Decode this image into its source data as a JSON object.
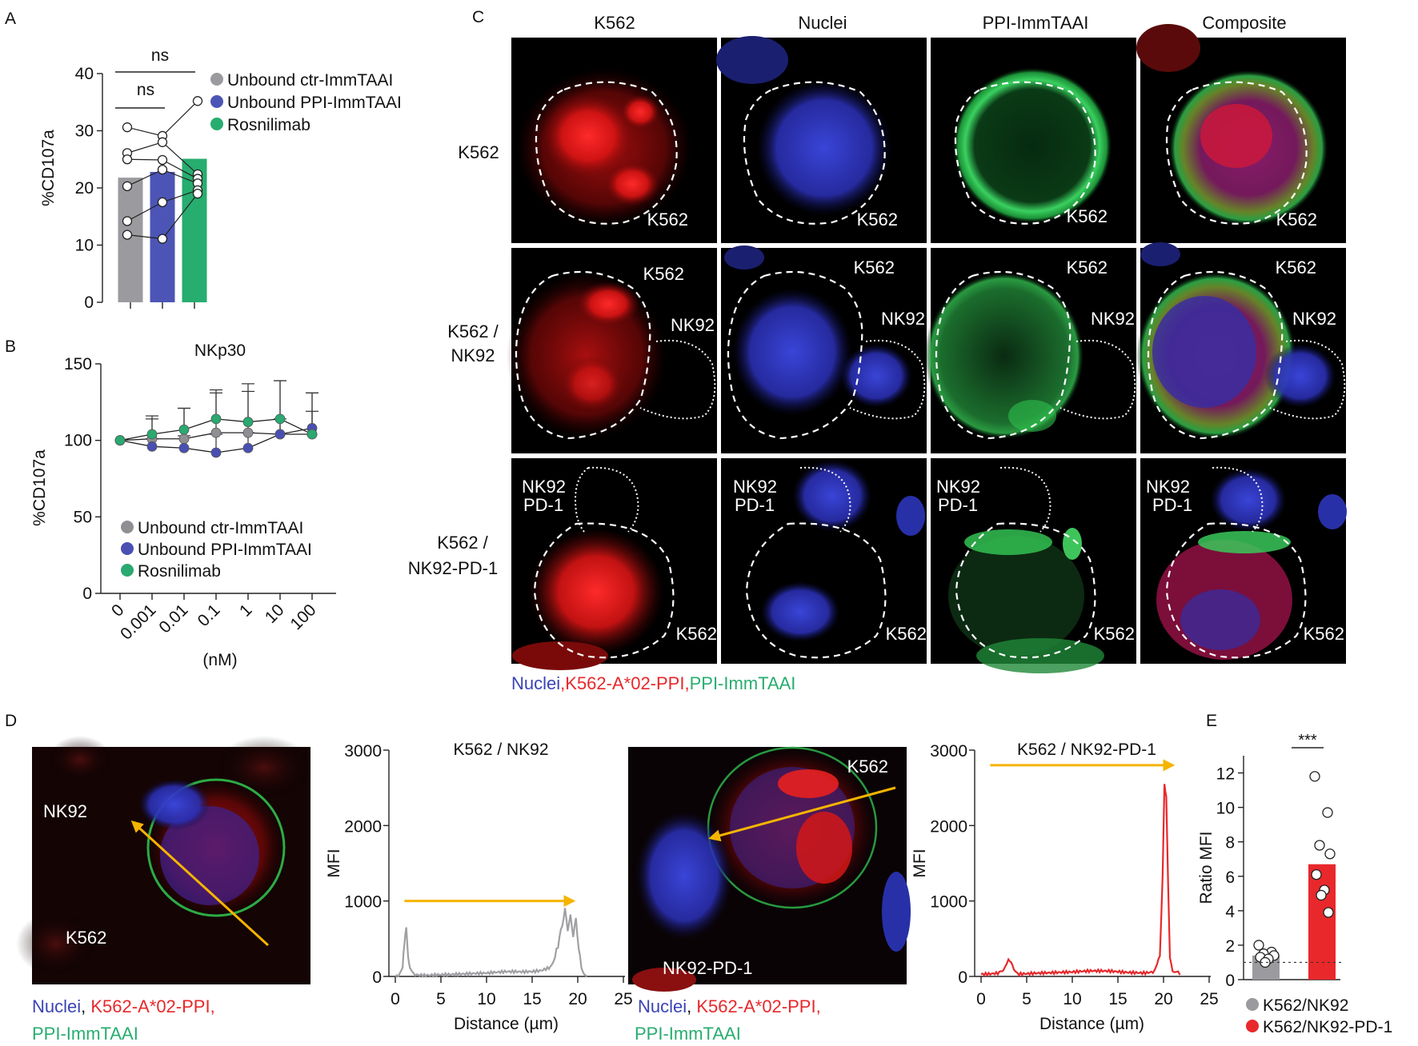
{
  "panels": {
    "A": {
      "letter": "A",
      "ylabel": "%CD107a",
      "ns1": "ns",
      "ns2": "ns",
      "yticks": [
        "0",
        "10",
        "20",
        "30",
        "40"
      ],
      "legend": [
        {
          "label": "Unbound ctr-ImmTAAI",
          "color": "#9b9b9f"
        },
        {
          "label": "Unbound PPI-ImmTAAI",
          "color": "#4c55b5"
        },
        {
          "label": "Rosnilimab",
          "color": "#27ad6f"
        }
      ]
    },
    "B": {
      "letter": "B",
      "title": "NKp30",
      "ylabel": "%CD107a",
      "xlabel": "(nM)",
      "yticks": [
        "0",
        "50",
        "100",
        "150"
      ],
      "xticks": [
        "0",
        "0.001",
        "0.01",
        "0.1",
        "1",
        "10",
        "100"
      ],
      "legend": [
        {
          "label": "Unbound ctr-ImmTAAI",
          "color": "#8f8f93"
        },
        {
          "label": "Unbound PPI-ImmTAAI",
          "color": "#4a4fb2"
        },
        {
          "label": "Rosnilimab",
          "color": "#2aa970"
        }
      ]
    },
    "C": {
      "letter": "C",
      "col_headers": [
        "K562",
        "Nuclei",
        "PPI-ImmTAAI",
        "Composite"
      ],
      "row_labels": [
        "K562",
        "K562 /",
        "NK92",
        "K562 /",
        "NK92-PD-1"
      ],
      "cell_labels": {
        "k562": "K562",
        "nk92": "NK92",
        "nk92pd1_a": "NK92",
        "nk92pd1_b": "PD-1"
      },
      "caption": {
        "nuclei": "Nuclei",
        "sep": ",",
        "k562": "K562-A*02-PPI",
        "sep2": ",",
        "ppi": "PPI-ImmTAAI"
      }
    },
    "D": {
      "letter": "D",
      "img1": {
        "nk92": "NK92",
        "k562": "K562"
      },
      "img2": {
        "k562": "K562",
        "nk92pd1": "NK92-PD-1"
      },
      "caption": {
        "nuclei": "Nuclei",
        "sep": ", ",
        "k562": "K562-A*02-PPI",
        "sep2": ",",
        "ppi": "PPI-ImmTAAI"
      },
      "xlabel": "Distance (µm)",
      "ylabel": "MFI"
    },
    "E": {
      "letter": "E",
      "stars": "***",
      "ylabel": "Ratio MFI",
      "yticks": [
        "0",
        "2",
        "4",
        "6",
        "8",
        "10",
        "12"
      ],
      "legend": [
        {
          "label": "K562/NK92",
          "color": "#9b9b9f"
        },
        {
          "label": "K562/NK92-PD-1",
          "color": "#e8282b"
        }
      ]
    }
  },
  "chart_data": [
    {
      "id": "A",
      "type": "bar",
      "title": "",
      "ylabel": "%CD107a",
      "ylim": [
        0,
        40
      ],
      "categories": [
        "Unbound ctr-ImmTAAI",
        "Unbound PPI-ImmTAAI",
        "Rosnilimab"
      ],
      "values": [
        21.8,
        22.8,
        25.1
      ],
      "points": [
        [
          30.6,
          26.1,
          25.0,
          20.3,
          14.2,
          11.8
        ],
        [
          29.1,
          28.0,
          24.9,
          23.2,
          17.5,
          11.1
        ],
        [
          35.2,
          22.4,
          21.6,
          20.8,
          19.6,
          19.0
        ]
      ],
      "significance": [
        "ns",
        "ns"
      ]
    },
    {
      "id": "B",
      "type": "line",
      "title": "NKp30",
      "xlabel": "(nM)",
      "ylabel": "%CD107a",
      "ylim": [
        0,
        150
      ],
      "categories": [
        "0",
        "0.001",
        "0.01",
        "0.1",
        "1",
        "10",
        "100"
      ],
      "series": [
        {
          "name": "Unbound ctr-ImmTAAI",
          "values": [
            100,
            101,
            101,
            105,
            105,
            104,
            104
          ],
          "err": [
            0,
            15,
            20,
            28,
            32,
            35,
            27
          ]
        },
        {
          "name": "Unbound PPI-ImmTAAI",
          "values": [
            100,
            96,
            95,
            92,
            95,
            104,
            108
          ],
          "err": [
            0,
            5,
            8,
            12,
            10,
            10,
            23
          ]
        },
        {
          "name": "Rosnilimab",
          "values": [
            100,
            104,
            107,
            114,
            112,
            114,
            104
          ],
          "err": [
            0,
            10,
            14,
            17,
            20,
            25,
            15
          ]
        }
      ]
    },
    {
      "id": "D1",
      "type": "line",
      "title": "K562 / NK92",
      "xlabel": "Distance (µm)",
      "ylabel": "MFI",
      "xlim": [
        0,
        25
      ],
      "ylim": [
        0,
        3000
      ],
      "xticks": [
        "0",
        "5",
        "10",
        "15",
        "20",
        "25"
      ],
      "yticks": [
        "0",
        "1000",
        "2000",
        "3000"
      ],
      "series": [
        {
          "name": "K562 / NK92",
          "color": "#a0a0a4",
          "x": [
            0,
            0.5,
            0.8,
            1.0,
            1.2,
            1.4,
            1.6,
            2.0,
            3,
            5,
            8,
            10,
            12,
            14,
            15,
            16,
            17,
            17.5,
            18,
            18.3,
            18.6,
            18.9,
            19.2,
            19.5,
            19.8,
            20.1,
            20.4,
            20.7,
            21
          ],
          "y": [
            0,
            30,
            150,
            420,
            620,
            300,
            100,
            40,
            30,
            40,
            35,
            30,
            45,
            50,
            60,
            80,
            130,
            250,
            500,
            700,
            870,
            640,
            780,
            560,
            740,
            400,
            120,
            30,
            0
          ]
        }
      ],
      "annotation": "arrow from x=1 to x=19.5 at y=1000"
    },
    {
      "id": "D2",
      "type": "line",
      "title": "K562 / NK92-PD-1",
      "xlabel": "Distance (µm)",
      "ylabel": "MFI",
      "xlim": [
        0,
        25
      ],
      "ylim": [
        0,
        3000
      ],
      "xticks": [
        "0",
        "5",
        "10",
        "15",
        "20",
        "25"
      ],
      "yticks": [
        "0",
        "1000",
        "2000",
        "3000"
      ],
      "series": [
        {
          "name": "K562 / NK92-PD-1",
          "color": "#e8282b",
          "x": [
            0,
            1,
            2,
            2.6,
            3.0,
            3.3,
            3.6,
            4,
            6,
            8,
            10,
            12,
            14,
            16,
            18,
            19,
            19.6,
            19.9,
            20.1,
            20.3,
            20.5,
            20.7,
            21.0,
            21.4,
            21.8
          ],
          "y": [
            30,
            40,
            60,
            120,
            260,
            180,
            80,
            50,
            55,
            50,
            45,
            55,
            60,
            55,
            60,
            80,
            300,
            1300,
            2580,
            2400,
            1200,
            250,
            80,
            40,
            20
          ]
        }
      ],
      "annotation": "arrow from x=1 to x=21 at y=2800"
    },
    {
      "id": "E",
      "type": "bar",
      "ylabel": "Ratio MFI",
      "ylim": [
        0,
        13
      ],
      "categories": [
        "K562/NK92",
        "K562/NK92-PD-1"
      ],
      "values": [
        1.4,
        6.7
      ],
      "points": [
        [
          2.0,
          1.6,
          1.5,
          1.4,
          1.3,
          1.2,
          1.0
        ],
        [
          11.8,
          9.7,
          7.8,
          7.3,
          6.1,
          5.2,
          4.9,
          3.9
        ]
      ],
      "reference_line": 1,
      "significance": "***"
    }
  ]
}
